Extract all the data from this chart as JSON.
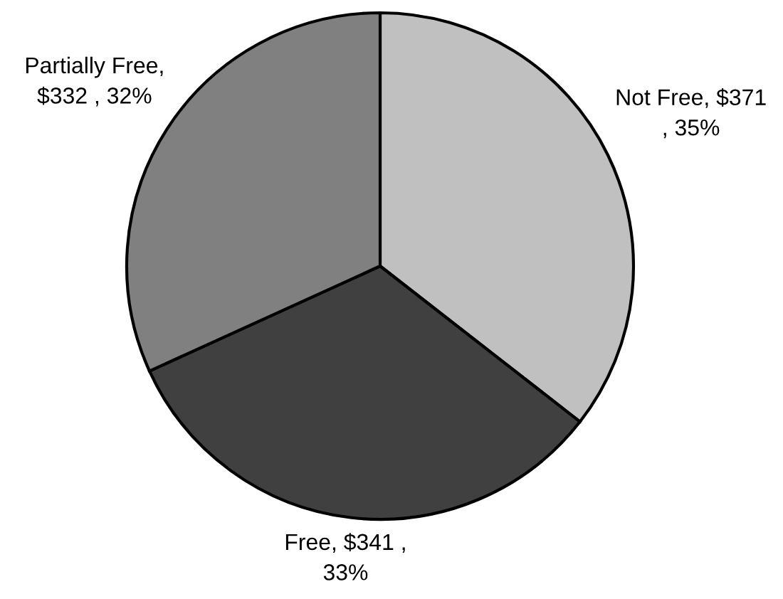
{
  "chart_data": {
    "type": "pie",
    "categories": [
      "Not Free",
      "Free",
      "Partially Free"
    ],
    "values": [
      371,
      341,
      332
    ],
    "colors": [
      "#c0c0c0",
      "#404040",
      "#808080"
    ],
    "value_labels": [
      ", $371\n, 35%",
      ", $341 ,\n33%",
      ",\n$332 , 32%"
    ]
  }
}
